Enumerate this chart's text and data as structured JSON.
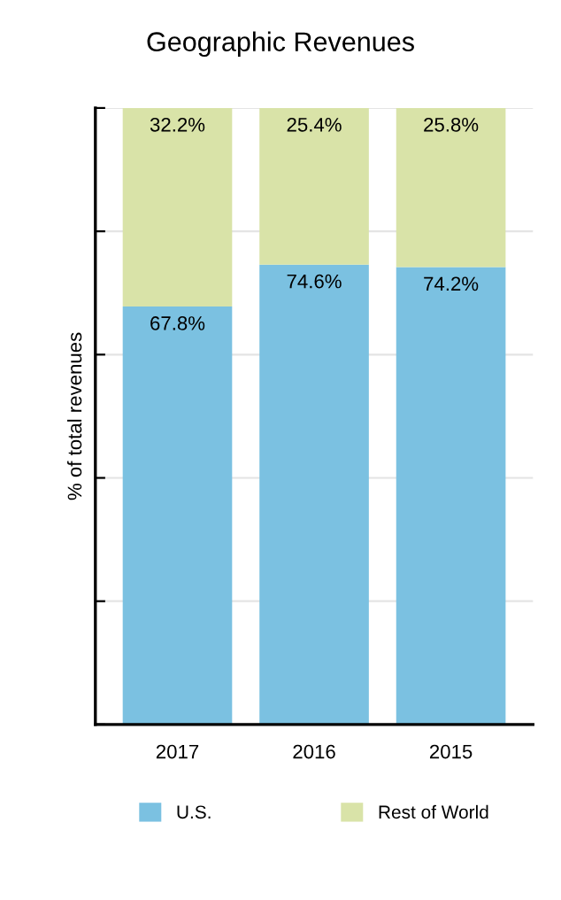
{
  "chart_data": {
    "type": "bar",
    "title": "Geographic Revenues",
    "ylabel": "% of total revenues",
    "categories": [
      "2017",
      "2016",
      "2015"
    ],
    "stacked": true,
    "series": [
      {
        "name": "U.S.",
        "color": "#7bc1e1",
        "values": [
          67.8,
          74.6,
          74.2
        ],
        "value_labels": [
          "67.8%",
          "74.6%",
          "74.2%"
        ]
      },
      {
        "name": "Rest of World",
        "color": "#d9e3a8",
        "values": [
          32.2,
          25.4,
          25.8
        ],
        "value_labels": [
          "32.2%",
          "25.4%",
          "25.8%"
        ]
      }
    ],
    "ylim": [
      0,
      100
    ],
    "yticks": [
      {
        "value": 0,
        "label": null
      },
      {
        "value": 20,
        "label": null
      },
      {
        "value": 40,
        "label": null
      },
      {
        "value": 60,
        "label": null
      },
      {
        "value": 80,
        "label": null
      },
      {
        "value": 100,
        "label": null
      }
    ],
    "tick_labels": "x",
    "grid": "y",
    "legend": "bottom"
  }
}
